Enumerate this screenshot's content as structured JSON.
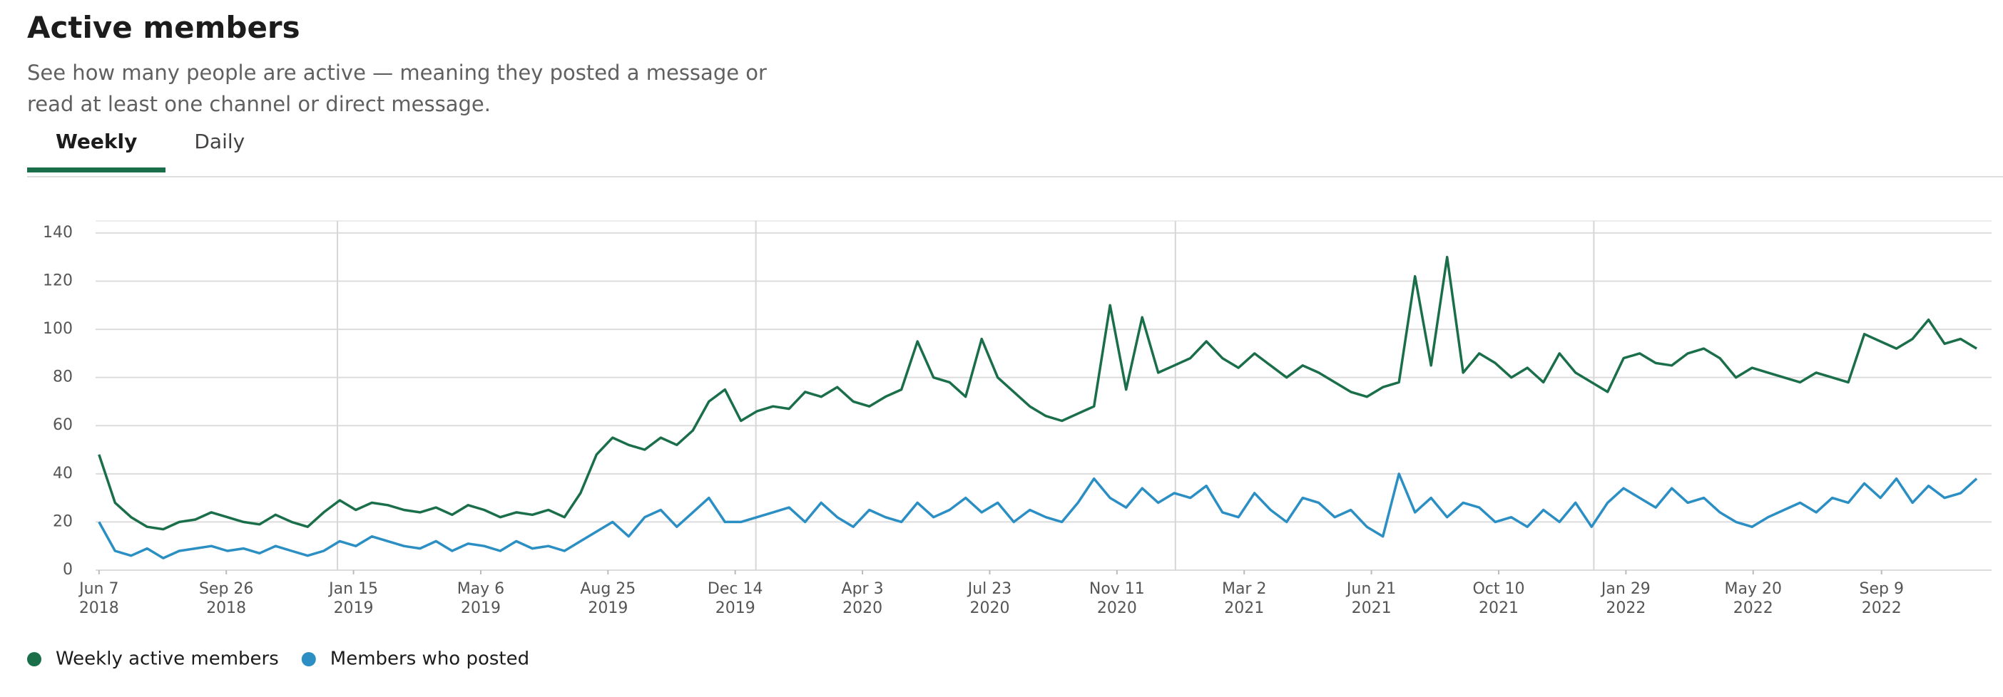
{
  "header": {
    "title": "Active members",
    "description": "See how many people are active — meaning they posted a message or read at least one channel or direct message."
  },
  "tabs": [
    {
      "label": "Weekly",
      "selected": true
    },
    {
      "label": "Daily",
      "selected": false
    }
  ],
  "chart_data": {
    "type": "line",
    "x": [
      "2018-06-07",
      "2018-06-21",
      "2018-07-05",
      "2018-07-19",
      "2018-08-02",
      "2018-08-16",
      "2018-08-30",
      "2018-09-13",
      "2018-09-27",
      "2018-10-11",
      "2018-10-25",
      "2018-11-08",
      "2018-11-22",
      "2018-12-06",
      "2018-12-20",
      "2019-01-03",
      "2019-01-17",
      "2019-01-31",
      "2019-02-14",
      "2019-02-28",
      "2019-03-14",
      "2019-03-28",
      "2019-04-11",
      "2019-04-25",
      "2019-05-09",
      "2019-05-23",
      "2019-06-06",
      "2019-06-20",
      "2019-07-04",
      "2019-07-18",
      "2019-08-01",
      "2019-08-15",
      "2019-08-29",
      "2019-09-12",
      "2019-09-26",
      "2019-10-10",
      "2019-10-24",
      "2019-11-07",
      "2019-11-21",
      "2019-12-05",
      "2019-12-19",
      "2020-01-02",
      "2020-01-16",
      "2020-01-30",
      "2020-02-13",
      "2020-02-27",
      "2020-03-12",
      "2020-03-26",
      "2020-04-09",
      "2020-04-23",
      "2020-05-07",
      "2020-05-21",
      "2020-06-04",
      "2020-06-18",
      "2020-07-02",
      "2020-07-16",
      "2020-07-30",
      "2020-08-13",
      "2020-08-27",
      "2020-09-10",
      "2020-09-24",
      "2020-10-08",
      "2020-10-22",
      "2020-11-05",
      "2020-11-19",
      "2020-12-03",
      "2020-12-17",
      "2020-12-31",
      "2021-01-14",
      "2021-01-28",
      "2021-02-11",
      "2021-02-25",
      "2021-03-11",
      "2021-03-25",
      "2021-04-08",
      "2021-04-22",
      "2021-05-06",
      "2021-05-20",
      "2021-06-03",
      "2021-06-17",
      "2021-07-01",
      "2021-07-15",
      "2021-07-29",
      "2021-08-12",
      "2021-08-26",
      "2021-09-09",
      "2021-09-23",
      "2021-10-07",
      "2021-10-21",
      "2021-11-04",
      "2021-11-18",
      "2021-12-02",
      "2021-12-16",
      "2021-12-30",
      "2022-01-13",
      "2022-01-27",
      "2022-02-10",
      "2022-02-24",
      "2022-03-10",
      "2022-03-24",
      "2022-04-07",
      "2022-04-21",
      "2022-05-05",
      "2022-05-19",
      "2022-06-02",
      "2022-06-16",
      "2022-06-30",
      "2022-07-14",
      "2022-07-28",
      "2022-08-11",
      "2022-08-25",
      "2022-09-08",
      "2022-09-22",
      "2022-10-06",
      "2022-10-20",
      "2022-11-03",
      "2022-11-17",
      "2022-12-01"
    ],
    "series": [
      {
        "name": "Weekly active members",
        "color": "#1a6f4a",
        "values": [
          48,
          28,
          22,
          18,
          17,
          20,
          21,
          24,
          22,
          20,
          19,
          23,
          20,
          18,
          24,
          29,
          25,
          28,
          27,
          25,
          24,
          26,
          23,
          27,
          25,
          22,
          24,
          23,
          25,
          22,
          32,
          48,
          55,
          52,
          50,
          55,
          52,
          58,
          70,
          75,
          62,
          66,
          68,
          67,
          74,
          72,
          76,
          70,
          68,
          72,
          75,
          95,
          80,
          78,
          72,
          96,
          80,
          74,
          68,
          64,
          62,
          65,
          68,
          110,
          75,
          105,
          82,
          85,
          88,
          95,
          88,
          84,
          90,
          85,
          80,
          85,
          82,
          78,
          74,
          72,
          76,
          78,
          122,
          85,
          130,
          82,
          90,
          86,
          80,
          84,
          78,
          90,
          82,
          78,
          74,
          88,
          90,
          86,
          85,
          90,
          92,
          88,
          80,
          84,
          82,
          80,
          78,
          82,
          80,
          78,
          98,
          95,
          92,
          96,
          104,
          94,
          96,
          92
        ]
      },
      {
        "name": "Members who posted",
        "color": "#2b8fc4",
        "values": [
          20,
          8,
          6,
          9,
          5,
          8,
          9,
          10,
          8,
          9,
          7,
          10,
          8,
          6,
          8,
          12,
          10,
          14,
          12,
          10,
          9,
          12,
          8,
          11,
          10,
          8,
          12,
          9,
          10,
          8,
          12,
          16,
          20,
          14,
          22,
          25,
          18,
          24,
          30,
          20,
          20,
          22,
          24,
          26,
          20,
          28,
          22,
          18,
          25,
          22,
          20,
          28,
          22,
          25,
          30,
          24,
          28,
          20,
          25,
          22,
          20,
          28,
          38,
          30,
          26,
          34,
          28,
          32,
          30,
          35,
          24,
          22,
          32,
          25,
          20,
          30,
          28,
          22,
          25,
          18,
          14,
          40,
          24,
          30,
          22,
          28,
          26,
          20,
          22,
          18,
          25,
          20,
          28,
          18,
          28,
          34,
          30,
          26,
          34,
          28,
          30,
          24,
          20,
          18,
          22,
          25,
          28,
          24,
          30,
          28,
          36,
          30,
          38,
          28,
          35,
          30,
          32,
          38
        ]
      }
    ],
    "xlim": [
      "2018-06-04",
      "2022-12-14"
    ],
    "xticks": [
      {
        "value": "2018-06-07",
        "label": "Jun 7 2018"
      },
      {
        "value": "2018-09-26",
        "label": "Sep 26 2018"
      },
      {
        "value": "2019-01-15",
        "label": "Jan 15 2019"
      },
      {
        "value": "2019-05-06",
        "label": "May 6 2019"
      },
      {
        "value": "2019-08-25",
        "label": "Aug 25 2019"
      },
      {
        "value": "2019-12-14",
        "label": "Dec 14 2019"
      },
      {
        "value": "2020-04-03",
        "label": "Apr 3 2020"
      },
      {
        "value": "2020-07-23",
        "label": "Jul 23 2020"
      },
      {
        "value": "2020-11-11",
        "label": "Nov 11 2020"
      },
      {
        "value": "2021-03-02",
        "label": "Mar 2 2021"
      },
      {
        "value": "2021-06-21",
        "label": "Jun 21 2021"
      },
      {
        "value": "2021-10-10",
        "label": "Oct 10 2021"
      },
      {
        "value": "2022-01-29",
        "label": "Jan 29 2022"
      },
      {
        "value": "2022-05-20",
        "label": "May 20 2022"
      },
      {
        "value": "2022-09-09",
        "label": "Sep 9 2022"
      }
    ],
    "xgrid": [
      "2019-01-01",
      "2020-01-01",
      "2021-01-01",
      "2022-01-01"
    ],
    "ylim": [
      0,
      145
    ],
    "yticks": [
      0,
      20,
      40,
      60,
      80,
      100,
      120,
      140
    ],
    "grid": true,
    "legend": "bottom-left"
  }
}
